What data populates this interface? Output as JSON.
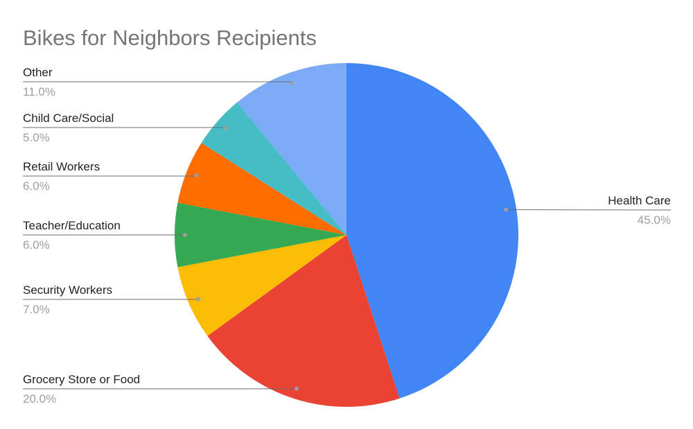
{
  "chart_data": {
    "type": "pie",
    "title": "Bikes for Neighbors Recipients",
    "slices": [
      {
        "label": "Health Care",
        "value": 45.0,
        "percent_label": "45.0%",
        "color": "#4285f4"
      },
      {
        "label": "Grocery Store or Food",
        "value": 20.0,
        "percent_label": "20.0%",
        "color": "#ea4335"
      },
      {
        "label": "Security Workers",
        "value": 7.0,
        "percent_label": "7.0%",
        "color": "#fbbc04"
      },
      {
        "label": "Teacher/Education",
        "value": 6.0,
        "percent_label": "6.0%",
        "color": "#34a853"
      },
      {
        "label": "Retail Workers",
        "value": 6.0,
        "percent_label": "6.0%",
        "color": "#ff6d01"
      },
      {
        "label": "Child Care/Social",
        "value": 5.0,
        "percent_label": "5.0%",
        "color": "#46bdc6"
      },
      {
        "label": "Other",
        "value": 11.0,
        "percent_label": "11.0%",
        "color": "#7baaf7"
      }
    ],
    "start_angle": "12 o'clock",
    "direction": "clockwise",
    "legend": "none"
  }
}
